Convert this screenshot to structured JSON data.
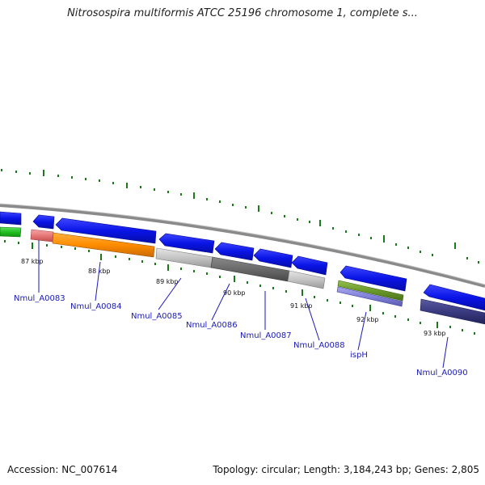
{
  "title": "Nitrosospira multiformis ATCC 25196 chromosome 1, complete s...",
  "footer": {
    "accession": "Accession: NC_007614",
    "summary": "Topology: circular; Length: 3,184,243 bp; Genes: 2,805"
  },
  "ruler": {
    "labels": [
      "87 kbp",
      "88 kbp",
      "89 kbp",
      "90 kbp",
      "91 kbp",
      "92 kbp",
      "93 kbp"
    ],
    "tick_color": "#1a7a1a"
  },
  "genes": [
    {
      "name": "Nmul_A0083"
    },
    {
      "name": "Nmul_A0084"
    },
    {
      "name": "Nmul_A0085"
    },
    {
      "name": "Nmul_A0086"
    },
    {
      "name": "Nmul_A0087"
    },
    {
      "name": "Nmul_A0088"
    },
    {
      "name": "ispH"
    },
    {
      "name": "Nmul_A0090"
    }
  ],
  "colors": {
    "backbone": "#8a8a8a",
    "cds": "#0a14e6",
    "label": "#1a1ab8",
    "orange": "#ff8c00",
    "pink": "#e87878",
    "green_left": "#22c022",
    "gray_light": "#c4c4c4",
    "gray_dark": "#6a6a6a",
    "olive": "#6a9a2a",
    "lavender": "#8080d8",
    "navy": "#3a3a80"
  }
}
